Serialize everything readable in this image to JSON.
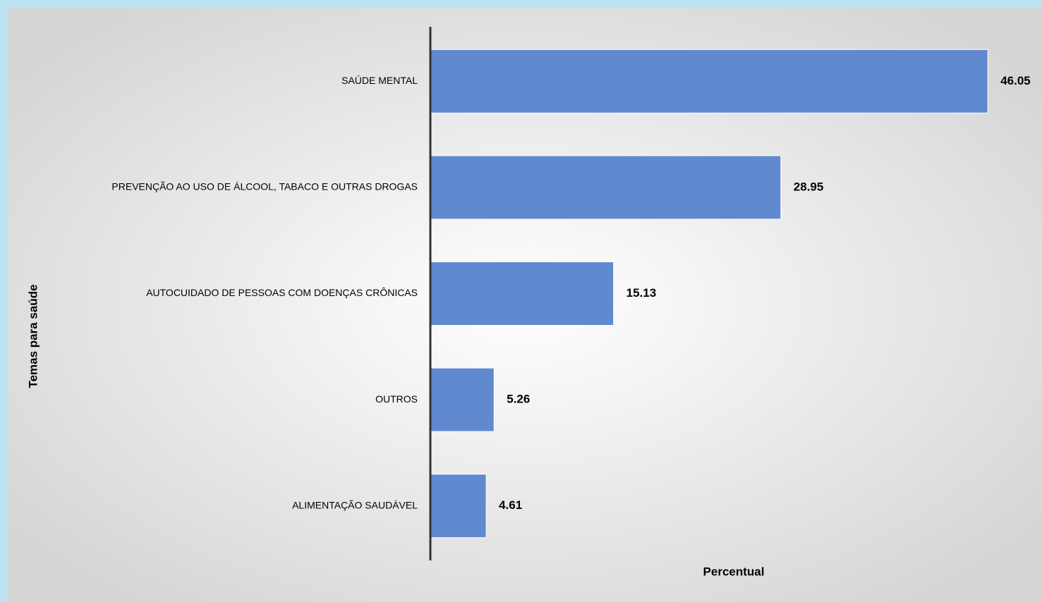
{
  "chart_data": {
    "type": "hbar",
    "categories": [
      "SAÚDE MENTAL",
      "PREVENÇÃO AO USO DE ÁLCOOL, TABACO E OUTRAS DROGAS",
      "AUTOCUIDADO DE PESSOAS COM DOENÇAS CRÔNICAS",
      "OUTROS",
      "ALIMENTAÇÃO SAUDÁVEL"
    ],
    "values": [
      46.05,
      28.95,
      15.13,
      5.26,
      4.61
    ],
    "color": "#6189cf",
    "xlim": [
      0,
      50
    ],
    "x_label": "Percentual",
    "y_label": "Temas para saúde"
  }
}
